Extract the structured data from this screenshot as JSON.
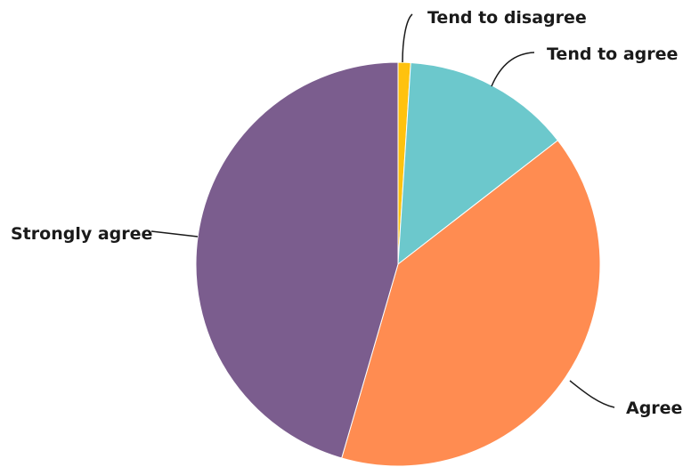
{
  "chart_data": {
    "type": "pie",
    "title": "",
    "start_angle_deg": 0,
    "direction": "clockwise",
    "slices": [
      {
        "label": "Tend to disagree",
        "value": 1,
        "color": "#FFC20E"
      },
      {
        "label": "Tend to agree",
        "value": 13.5,
        "color": "#6CC8CC"
      },
      {
        "label": "Agree",
        "value": 40,
        "color": "#FF8C51"
      },
      {
        "label": "Strongly agree",
        "value": 45.5,
        "color": "#7B5D8E"
      }
    ]
  }
}
